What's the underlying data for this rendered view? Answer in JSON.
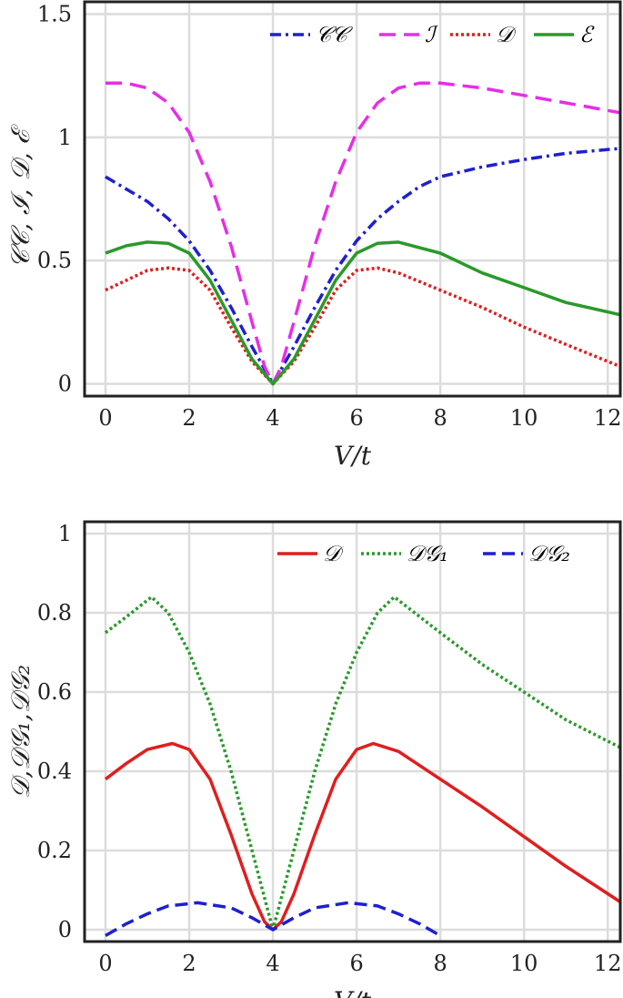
{
  "chart_data": [
    {
      "type": "line",
      "xlabel": "V/t",
      "ylabel": "𝒞𝒞, ℐ, 𝒟, ℰ",
      "xlim": [
        -0.5,
        12.3
      ],
      "ylim": [
        -0.05,
        1.55
      ],
      "xticks": [
        0,
        2,
        4,
        6,
        8,
        10,
        12
      ],
      "yticks": [
        0,
        0.5,
        1,
        1.5
      ],
      "ytick_labels": [
        "0",
        "0.5",
        "1",
        "1.5"
      ],
      "grid": true,
      "legend_position": "top-right",
      "legend_layout": "horizontal",
      "series": [
        {
          "name": "𝒞𝒞",
          "color": "#1f1fd0",
          "dash": "12 5 3 5",
          "x": [
            0,
            0.5,
            1,
            1.5,
            2,
            2.5,
            3,
            3.5,
            4,
            4.5,
            5,
            5.5,
            6,
            6.5,
            7,
            7.5,
            8,
            9,
            10,
            11,
            12.3
          ],
          "y": [
            0.84,
            0.79,
            0.74,
            0.67,
            0.58,
            0.46,
            0.31,
            0.15,
            0.0,
            0.15,
            0.31,
            0.46,
            0.58,
            0.67,
            0.74,
            0.8,
            0.84,
            0.88,
            0.91,
            0.935,
            0.955
          ]
        },
        {
          "name": "ℐ",
          "color": "#e62ee6",
          "dash": "18 9",
          "x": [
            0,
            0.5,
            1,
            1.5,
            2,
            2.5,
            3,
            3.5,
            3.8,
            4,
            4.2,
            4.5,
            5,
            5.5,
            6,
            6.5,
            7,
            7.5,
            8,
            9,
            10,
            11,
            12.3
          ],
          "y": [
            1.22,
            1.22,
            1.2,
            1.14,
            1.02,
            0.82,
            0.56,
            0.25,
            0.07,
            0.0,
            0.07,
            0.25,
            0.56,
            0.82,
            1.02,
            1.14,
            1.2,
            1.22,
            1.22,
            1.2,
            1.17,
            1.14,
            1.1
          ]
        },
        {
          "name": "𝒟",
          "color": "#e01e1e",
          "dash": "3 3",
          "x": [
            0,
            0.5,
            1,
            1.5,
            2,
            2.5,
            3,
            3.5,
            4,
            4.5,
            5,
            5.5,
            6,
            6.5,
            7,
            8,
            9,
            10,
            11,
            12.3
          ],
          "y": [
            0.38,
            0.42,
            0.46,
            0.47,
            0.46,
            0.38,
            0.23,
            0.09,
            0.0,
            0.09,
            0.23,
            0.38,
            0.46,
            0.47,
            0.45,
            0.38,
            0.31,
            0.23,
            0.16,
            0.07
          ]
        },
        {
          "name": "ℰ",
          "color": "#2a9a2a",
          "dash": "",
          "x": [
            0,
            0.5,
            1,
            1.5,
            2,
            2.5,
            3,
            3.5,
            4,
            4.5,
            5,
            5.5,
            6,
            6.5,
            7,
            8,
            9,
            10,
            11,
            12.3
          ],
          "y": [
            0.53,
            0.56,
            0.575,
            0.57,
            0.53,
            0.42,
            0.26,
            0.1,
            0.0,
            0.1,
            0.26,
            0.42,
            0.53,
            0.57,
            0.575,
            0.53,
            0.45,
            0.39,
            0.33,
            0.28
          ]
        }
      ]
    },
    {
      "type": "line",
      "xlabel": "V/t",
      "ylabel": "𝒟,𝒟𝒢₁,𝒟𝒢₂",
      "xlim": [
        -0.5,
        12.3
      ],
      "ylim": [
        -0.03,
        1.03
      ],
      "xticks": [
        0,
        2,
        4,
        6,
        8,
        10,
        12
      ],
      "yticks": [
        0,
        0.2,
        0.4,
        0.6,
        0.8,
        1
      ],
      "ytick_labels": [
        "0",
        "0.2",
        "0.4",
        "0.6",
        "0.8",
        "1"
      ],
      "grid": true,
      "legend_position": "top-right",
      "legend_layout": "horizontal",
      "series": [
        {
          "name": "𝒟",
          "color": "#e01e1e",
          "dash": "",
          "x": [
            0,
            0.5,
            1,
            1.6,
            2,
            2.5,
            3,
            3.5,
            3.8,
            4,
            4.2,
            4.5,
            5,
            5.5,
            6,
            6.4,
            7,
            8,
            9,
            10,
            11,
            12.3
          ],
          "y": [
            0.38,
            0.42,
            0.455,
            0.47,
            0.455,
            0.38,
            0.24,
            0.09,
            0.02,
            0.0,
            0.02,
            0.09,
            0.24,
            0.38,
            0.455,
            0.47,
            0.45,
            0.38,
            0.31,
            0.235,
            0.16,
            0.07
          ]
        },
        {
          "name": "𝒟𝒢₁",
          "color": "#2a9a2a",
          "dash": "3 3",
          "x": [
            0,
            0.5,
            1.1,
            1.5,
            2,
            2.5,
            3,
            3.5,
            4,
            4.5,
            5,
            5.5,
            6,
            6.5,
            6.9,
            8,
            9,
            10,
            11,
            12.3
          ],
          "y": [
            0.75,
            0.79,
            0.84,
            0.8,
            0.7,
            0.57,
            0.4,
            0.2,
            0.0,
            0.2,
            0.4,
            0.57,
            0.7,
            0.8,
            0.84,
            0.75,
            0.67,
            0.6,
            0.53,
            0.46
          ]
        },
        {
          "name": "𝒟𝒢₂",
          "color": "#1f1fd0",
          "dash": "14 7",
          "x": [
            0,
            0.5,
            1,
            1.5,
            2.2,
            3,
            3.5,
            4,
            4.5,
            5,
            5.8,
            6.5,
            7,
            7.5,
            8
          ],
          "y": [
            -0.015,
            0.015,
            0.04,
            0.06,
            0.068,
            0.055,
            0.03,
            0.0,
            0.03,
            0.055,
            0.068,
            0.06,
            0.04,
            0.015,
            -0.015
          ]
        }
      ]
    }
  ]
}
